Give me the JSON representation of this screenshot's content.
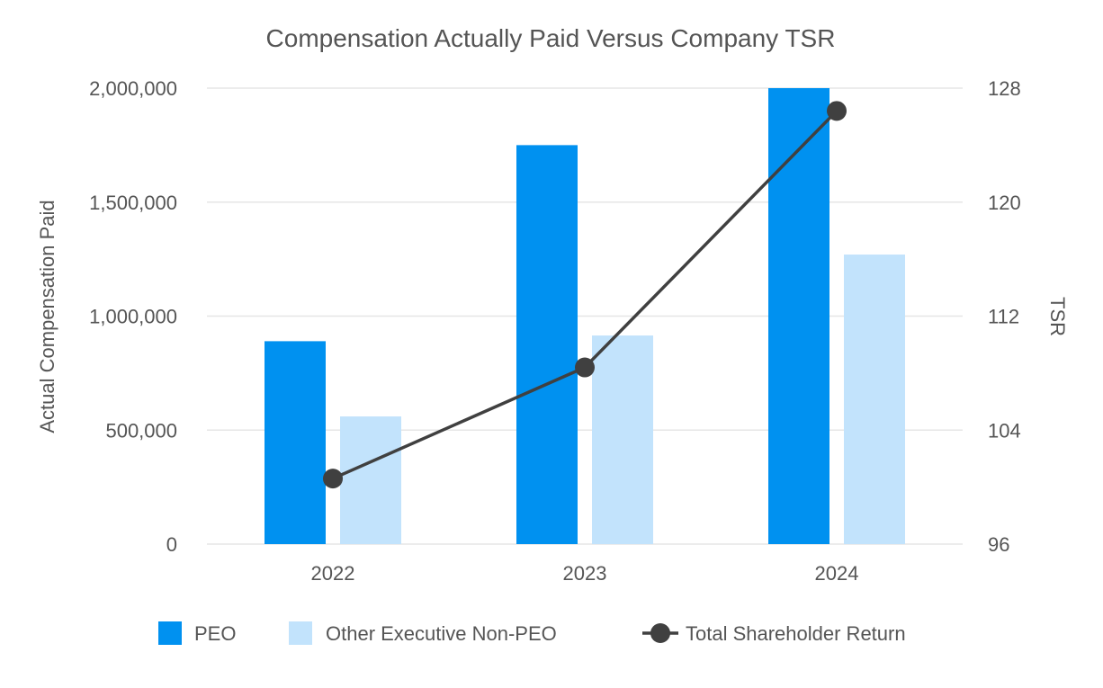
{
  "chart_data": {
    "type": "bar",
    "title": "Compensation Actually Paid Versus Company TSR",
    "categories": [
      "2022",
      "2023",
      "2024"
    ],
    "ylabel": "Actual Compensation Paid",
    "y2label": "TSR",
    "ylim": [
      0,
      2000000
    ],
    "y2lim": [
      96,
      128
    ],
    "yticks": [
      0,
      500000,
      1000000,
      1500000,
      2000000
    ],
    "ytick_labels": [
      "0",
      "500,000",
      "1,000,000",
      "1,500,000",
      "2,000,000"
    ],
    "y2ticks": [
      96,
      104,
      112,
      120,
      128
    ],
    "y2tick_labels": [
      "96",
      "104",
      "112",
      "120",
      "128"
    ],
    "grid": true,
    "legend_position": "bottom",
    "series": [
      {
        "name": "PEO",
        "type": "bar",
        "axis": "left",
        "color": "#0091f0",
        "values": [
          890000,
          1750000,
          2000000
        ]
      },
      {
        "name": "Other Executive Non-PEO",
        "type": "bar",
        "axis": "left",
        "color": "#c2e3fc",
        "values": [
          560000,
          915000,
          1270000
        ]
      },
      {
        "name": "Total Shareholder Return",
        "type": "line",
        "axis": "right",
        "color": "#404040",
        "values": [
          100.6,
          108.4,
          126.4
        ]
      }
    ]
  }
}
